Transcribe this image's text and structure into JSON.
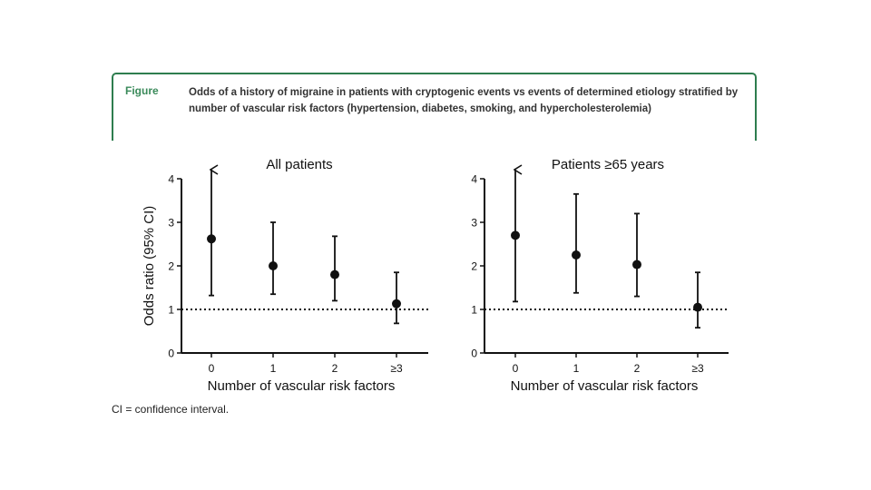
{
  "figure": {
    "label": "Figure",
    "caption": "Odds of a history of migraine in patients with cryptogenic events vs events of determined etiology stratified by number of vascular risk factors (hypertension, diabetes, smoking, and hypercholesterolemia)"
  },
  "footnote": "CI = confidence interval.",
  "chart_data": [
    {
      "type": "scatter",
      "title": "All patients",
      "xlabel": "Number of vascular risk factors",
      "ylabel": "Odds ratio (95% CI)",
      "categories": [
        "0",
        "1",
        "2",
        "≥3"
      ],
      "values": [
        2.62,
        2.0,
        1.8,
        1.13
      ],
      "ci_lower": [
        1.32,
        1.35,
        1.2,
        0.68
      ],
      "ci_upper": [
        4.0,
        3.0,
        2.68,
        1.85
      ],
      "ci_arrow": [
        true,
        false,
        false,
        false
      ],
      "reference_line": 1,
      "ylim": [
        0,
        4
      ],
      "yticks": [
        0,
        1,
        2,
        3,
        4
      ]
    },
    {
      "type": "scatter",
      "title": "Patients ≥65 years",
      "xlabel": "Number of vascular risk factors",
      "ylabel": "",
      "categories": [
        "0",
        "1",
        "2",
        "≥3"
      ],
      "values": [
        2.7,
        2.25,
        2.03,
        1.05
      ],
      "ci_lower": [
        1.18,
        1.38,
        1.3,
        0.58
      ],
      "ci_upper": [
        4.0,
        3.65,
        3.2,
        1.85
      ],
      "ci_arrow": [
        true,
        false,
        false,
        false
      ],
      "reference_line": 1,
      "ylim": [
        0,
        4
      ],
      "yticks": [
        0,
        1,
        2,
        3,
        4
      ]
    }
  ]
}
